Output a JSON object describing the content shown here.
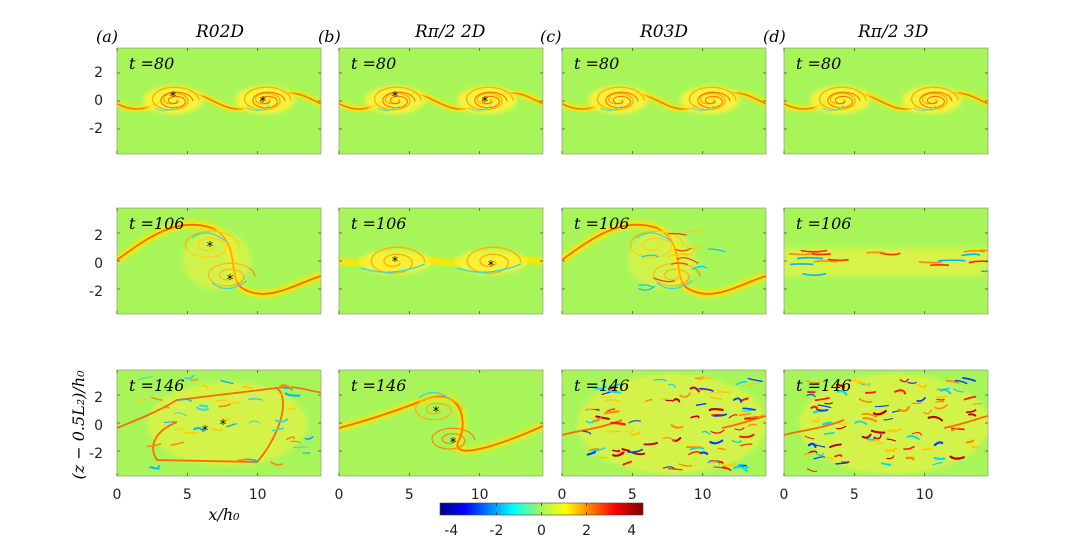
{
  "figure": {
    "columns": [
      {
        "letter": "(a)",
        "case": "R02D"
      },
      {
        "letter": "(b)",
        "case": "Rπ/2 2D"
      },
      {
        "letter": "(c)",
        "case": "R03D"
      },
      {
        "letter": "(d)",
        "case": "Rπ/2 3D"
      }
    ],
    "rows": [
      {
        "time_label": "t =80"
      },
      {
        "time_label": "t =106"
      },
      {
        "time_label": "t =146"
      }
    ],
    "y_axis_label": "(z − 0.5L₂)/h₀",
    "x_axis_label": "x/h₀",
    "y_ticks": [
      "2",
      "0",
      "-2"
    ],
    "x_ticks": [
      "0",
      "5",
      "10"
    ],
    "colorbar": {
      "ticks": [
        "-4",
        "-2",
        "0",
        "2",
        "4"
      ],
      "min": -4.5,
      "max": 4.5,
      "colormap": "jet"
    },
    "markers": "*"
  }
}
